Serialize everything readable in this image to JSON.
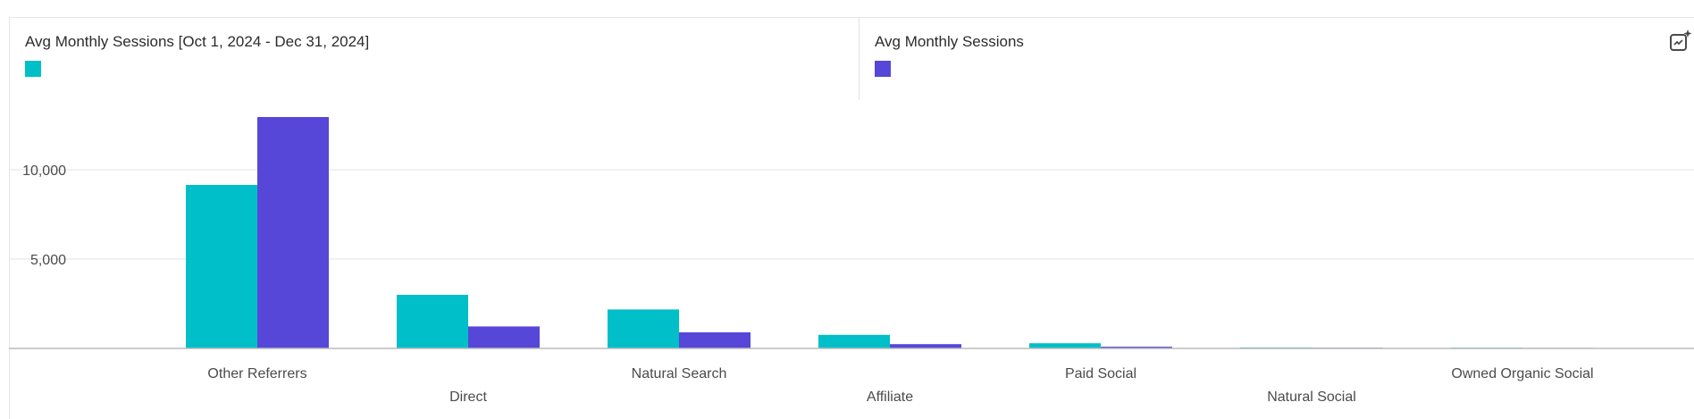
{
  "legend": [
    {
      "label": "Avg Monthly Sessions [Oct 1, 2024 - Dec 31, 2024]",
      "color": "#00bfc8"
    },
    {
      "label": "Avg Monthly Sessions",
      "color": "#5647d8"
    }
  ],
  "icons": {
    "insight": "sparkle-insight-icon"
  },
  "chart_data": {
    "type": "bar",
    "categories": [
      "Other Referrers",
      "Direct",
      "Natural Search",
      "Affiliate",
      "Paid Social",
      "Natural Social",
      "Owned Organic Social"
    ],
    "series": [
      {
        "name": "Avg Monthly Sessions [Oct 1, 2024 - Dec 31, 2024]",
        "color": "#00bfc8",
        "values": [
          9150,
          3000,
          2180,
          760,
          290,
          55,
          45
        ]
      },
      {
        "name": "Avg Monthly Sessions",
        "color": "#5647d8",
        "values": [
          12950,
          1230,
          900,
          240,
          95,
          40,
          30
        ]
      }
    ],
    "yticks": [
      5000,
      10000
    ],
    "ytick_labels": [
      "5,000",
      "10,000"
    ],
    "ylim": [
      0,
      13500
    ],
    "grid": true,
    "legend_position": "top"
  }
}
